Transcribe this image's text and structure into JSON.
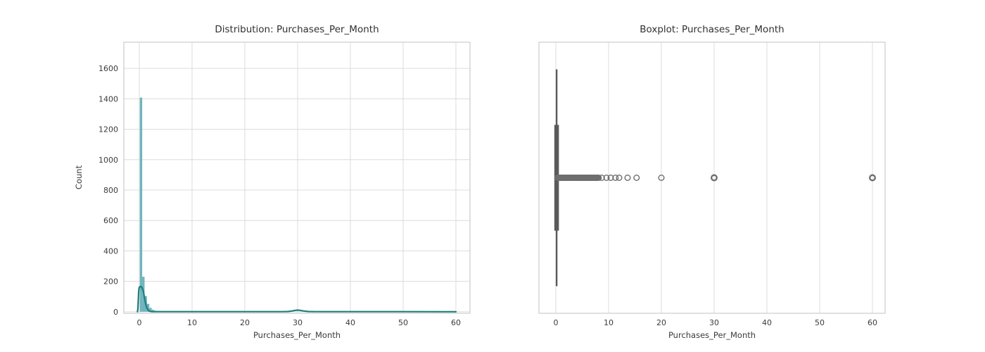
{
  "figure": {
    "background": "#ffffff"
  },
  "colors": {
    "grid": "#dcdcdc",
    "spine": "#cbcbcb",
    "tick_text": "#3b3b3b",
    "hist_bar": "#6fb4bb",
    "kde_line": "#1c7e7f",
    "box": "#5a5a5a",
    "flier": "#6e6e6e"
  },
  "chart_data": [
    {
      "type": "histogram",
      "title": "Distribution: Purchases_Per_Month",
      "xlabel": "Purchases_Per_Month",
      "ylabel": "Count",
      "xticks": [
        0,
        10,
        20,
        30,
        40,
        50,
        60
      ],
      "yticks": [
        0,
        200,
        400,
        600,
        800,
        1000,
        1200,
        1400,
        1600
      ],
      "xlim": [
        -2.93,
        62.67
      ],
      "ylim": [
        -10,
        1772
      ],
      "grid": true,
      "bars": [
        [
          0.1,
          0.55,
          1408
        ],
        [
          0.55,
          1.0,
          230
        ],
        [
          1.0,
          1.45,
          103
        ],
        [
          1.45,
          1.9,
          52
        ],
        [
          1.9,
          2.35,
          26
        ],
        [
          2.35,
          2.8,
          13
        ],
        [
          2.8,
          3.25,
          7
        ],
        [
          3.25,
          3.7,
          4
        ]
      ],
      "kde": [
        [
          -0.35,
          0
        ],
        [
          -0.28,
          15
        ],
        [
          -0.2,
          70
        ],
        [
          -0.12,
          130
        ],
        [
          -0.05,
          155
        ],
        [
          0.05,
          163
        ],
        [
          0.2,
          166
        ],
        [
          0.35,
          165
        ],
        [
          0.5,
          160
        ],
        [
          0.65,
          148
        ],
        [
          0.8,
          128
        ],
        [
          0.95,
          100
        ],
        [
          1.1,
          72
        ],
        [
          1.25,
          48
        ],
        [
          1.4,
          30
        ],
        [
          1.55,
          18
        ],
        [
          1.7,
          10
        ],
        [
          1.9,
          5
        ],
        [
          2.1,
          2.5
        ],
        [
          2.4,
          1.2
        ],
        [
          2.8,
          0.8
        ],
        [
          3.5,
          0.6
        ],
        [
          5,
          0.5
        ],
        [
          10,
          0.5
        ],
        [
          20,
          0.5
        ],
        [
          27,
          0.6
        ],
        [
          28.2,
          1.8
        ],
        [
          29,
          5.5
        ],
        [
          29.6,
          9.5
        ],
        [
          30,
          10.8
        ],
        [
          30.4,
          9.5
        ],
        [
          31.2,
          5
        ],
        [
          32,
          1.8
        ],
        [
          33.2,
          0.7
        ],
        [
          40,
          0.5
        ],
        [
          50,
          0.5
        ],
        [
          57,
          0.4
        ],
        [
          59.5,
          0.3
        ],
        [
          60,
          0.1
        ]
      ]
    },
    {
      "type": "boxplot",
      "title": "Boxplot: Purchases_Per_Month",
      "xlabel": "Purchases_Per_Month",
      "xticks": [
        0,
        10,
        20,
        30,
        40,
        50,
        60
      ],
      "xlim": [
        -3.2,
        62.4
      ],
      "grid": true,
      "box": {
        "position": 0.15,
        "box_frac": 0.8,
        "cap_frac": 0.39
      },
      "outlier_cluster": {
        "min": 0.3,
        "max": 8.1,
        "step": 0.15
      },
      "outlier_points": [
        8.7,
        9.6,
        10.4,
        11.3,
        12.0,
        13.6,
        15.3,
        20,
        30,
        60
      ],
      "bold_outlier_points": [
        30,
        60
      ]
    }
  ]
}
